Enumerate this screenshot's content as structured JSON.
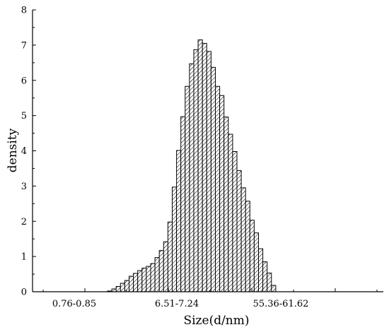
{
  "chart_data": {
    "type": "bar",
    "xlabel": "Size(d/nm)",
    "ylabel": "density",
    "ylim": [
      0,
      8
    ],
    "yticks": [
      0,
      1,
      2,
      3,
      4,
      5,
      6,
      7,
      8
    ],
    "x_tick_labels": [
      "0.76-0.85",
      "6.51-7.24",
      "55.36-61.62"
    ],
    "bar_pattern": "diagonal hatch",
    "bar_stroke_color": "#000000",
    "values": [
      0.02,
      0.08,
      0.15,
      0.24,
      0.32,
      0.44,
      0.52,
      0.6,
      0.67,
      0.72,
      0.8,
      0.97,
      1.17,
      1.42,
      1.98,
      2.97,
      4.01,
      4.97,
      5.83,
      6.47,
      6.87,
      7.15,
      7.05,
      6.82,
      6.37,
      5.83,
      5.57,
      4.96,
      4.47,
      3.98,
      3.44,
      2.95,
      2.57,
      2.03,
      1.67,
      1.22,
      0.85,
      0.53,
      0.18
    ]
  }
}
